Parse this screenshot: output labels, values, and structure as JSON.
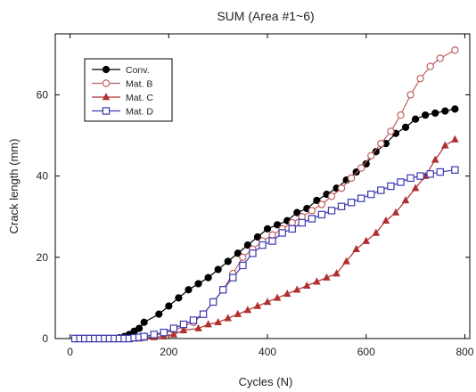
{
  "chart_data": {
    "type": "line",
    "title": "SUM (Area #1~6)",
    "xlabel": "Cycles (N)",
    "ylabel": "Crack length (mm)",
    "xlim": [
      -30,
      810
    ],
    "ylim": [
      0,
      75
    ],
    "xticks": [
      0,
      200,
      400,
      600,
      800
    ],
    "yticks": [
      0,
      20,
      40,
      60
    ],
    "grid": false,
    "legend_position": "top-left",
    "series": [
      {
        "name": "Conv.",
        "color": "#000000",
        "marker": "circle-filled",
        "x": [
          10,
          20,
          30,
          40,
          50,
          60,
          70,
          80,
          90,
          100,
          110,
          120,
          130,
          140,
          150,
          180,
          200,
          220,
          240,
          260,
          280,
          300,
          320,
          340,
          360,
          380,
          400,
          420,
          440,
          460,
          480,
          500,
          520,
          540,
          560,
          580,
          600,
          620,
          640,
          660,
          680,
          700,
          720,
          740,
          760,
          780
        ],
        "y": [
          0,
          0,
          0,
          0,
          0,
          0,
          0,
          0,
          0,
          0.2,
          0.5,
          1,
          1.8,
          2.5,
          4,
          6,
          8,
          10,
          12,
          13.5,
          15,
          17,
          19,
          21,
          23,
          25,
          27,
          28,
          29,
          31,
          32,
          34,
          35.5,
          37,
          39,
          41,
          43,
          46,
          48,
          50.5,
          52,
          54,
          55,
          55.5,
          56,
          56.5
        ]
      },
      {
        "name": "Mat. B",
        "color": "#c06060",
        "marker": "circle-open",
        "x": [
          10,
          20,
          30,
          40,
          50,
          60,
          70,
          80,
          90,
          100,
          110,
          120,
          130,
          140,
          150,
          170,
          190,
          210,
          230,
          250,
          270,
          290,
          310,
          330,
          350,
          370,
          390,
          410,
          430,
          450,
          470,
          490,
          510,
          530,
          550,
          570,
          590,
          610,
          630,
          650,
          670,
          690,
          710,
          730,
          750,
          780
        ],
        "y": [
          0,
          0,
          0,
          0,
          0,
          0,
          0,
          0,
          0,
          0,
          0,
          0,
          0.2,
          0.3,
          0.5,
          0.8,
          1.3,
          2,
          3,
          4,
          6,
          9,
          12,
          16,
          20,
          22,
          24,
          25.5,
          27,
          28.5,
          30,
          31.5,
          33,
          35,
          37,
          39.5,
          42,
          45,
          48,
          51,
          55,
          60,
          64,
          67,
          69,
          71
        ]
      },
      {
        "name": "Mat. C",
        "color": "#b03030",
        "marker": "triangle-filled",
        "x": [
          10,
          20,
          30,
          40,
          50,
          60,
          70,
          80,
          90,
          100,
          110,
          120,
          130,
          140,
          150,
          170,
          190,
          210,
          230,
          260,
          280,
          300,
          320,
          340,
          360,
          380,
          400,
          420,
          440,
          460,
          480,
          500,
          520,
          540,
          560,
          580,
          600,
          620,
          640,
          660,
          680,
          700,
          720,
          740,
          760,
          780
        ],
        "y": [
          0,
          0,
          0,
          0,
          0,
          0,
          0,
          0,
          0,
          0,
          0,
          0,
          0,
          0,
          0.2,
          0.3,
          0.5,
          1,
          2,
          2.5,
          3.5,
          4,
          5,
          6,
          7,
          8,
          9,
          10,
          11,
          12,
          13,
          14,
          15,
          16,
          19,
          22,
          24,
          26,
          29,
          31,
          34,
          37,
          40,
          44,
          47.5,
          49
        ]
      },
      {
        "name": "Mat. D",
        "color": "#3a3ab0",
        "marker": "square-open",
        "x": [
          10,
          20,
          30,
          40,
          50,
          60,
          70,
          80,
          90,
          100,
          110,
          120,
          130,
          140,
          150,
          170,
          190,
          210,
          230,
          250,
          270,
          290,
          310,
          330,
          350,
          370,
          390,
          410,
          430,
          450,
          470,
          490,
          510,
          530,
          550,
          570,
          590,
          610,
          630,
          650,
          670,
          690,
          710,
          730,
          750,
          780
        ],
        "y": [
          0,
          0,
          0,
          0,
          0,
          0,
          0,
          0,
          0,
          0,
          0,
          0,
          0.2,
          0.3,
          0.5,
          1,
          1.5,
          2.5,
          3.5,
          4.5,
          6,
          9,
          12,
          15,
          18,
          21,
          23,
          24,
          26,
          27,
          28.5,
          29.5,
          30.5,
          31.5,
          32.5,
          33.5,
          34.5,
          35.5,
          36.5,
          37.5,
          38.5,
          39.5,
          40,
          40.5,
          41,
          41.5
        ]
      }
    ]
  }
}
